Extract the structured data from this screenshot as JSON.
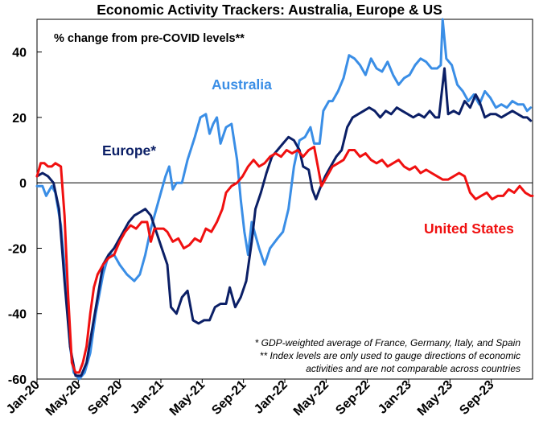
{
  "chart_data": {
    "type": "line",
    "title": "Economic Activity Trackers: Australia, Europe & US",
    "subtitle": "% change from pre-COVID levels**",
    "xlabel": "",
    "ylabel": "",
    "ylim": [
      -60,
      50
    ],
    "yticks": [
      40,
      20,
      0,
      -20,
      -40,
      -60
    ],
    "x_tick_labels": [
      "Jan-20",
      "May-20",
      "Sep-20",
      "Jan-21",
      "May-21",
      "Sep-21",
      "Jan-22",
      "May-22",
      "Sep-22",
      "Jan-23",
      "May-23",
      "Sep-23"
    ],
    "notes": [
      "* GDP-weighted average of France, Germany, Italy, and Spain",
      "** Index levels are only used to gauge directions of economic",
      "activities and are not comparable across countries"
    ],
    "series": [
      {
        "name": "Australia",
        "label": "Australia",
        "color": "#3a8ee6",
        "points": [
          [
            0,
            -1
          ],
          [
            0.3,
            -1
          ],
          [
            0.5,
            -4
          ],
          [
            0.8,
            -1
          ],
          [
            1.0,
            -3
          ],
          [
            1.3,
            -13
          ],
          [
            1.6,
            -32
          ],
          [
            1.8,
            -50
          ],
          [
            2.0,
            -58
          ],
          [
            2.3,
            -60
          ],
          [
            2.6,
            -58
          ],
          [
            2.9,
            -52
          ],
          [
            3.2,
            -40
          ],
          [
            3.6,
            -28
          ],
          [
            3.9,
            -22
          ],
          [
            4.2,
            -22
          ],
          [
            4.5,
            -25
          ],
          [
            4.9,
            -28
          ],
          [
            5.3,
            -30
          ],
          [
            5.6,
            -28
          ],
          [
            5.9,
            -22
          ],
          [
            6.2,
            -14
          ],
          [
            6.5,
            -8
          ],
          [
            6.8,
            -2
          ],
          [
            7.0,
            2
          ],
          [
            7.2,
            5
          ],
          [
            7.4,
            -2
          ],
          [
            7.6,
            0
          ],
          [
            7.9,
            0
          ],
          [
            8.2,
            7
          ],
          [
            8.6,
            14
          ],
          [
            8.9,
            20
          ],
          [
            9.2,
            21
          ],
          [
            9.4,
            15
          ],
          [
            9.6,
            18
          ],
          [
            9.8,
            20
          ],
          [
            10.0,
            12
          ],
          [
            10.3,
            17
          ],
          [
            10.6,
            18
          ],
          [
            10.9,
            7
          ],
          [
            11.1,
            -5
          ],
          [
            11.3,
            -15
          ],
          [
            11.5,
            -22
          ],
          [
            11.7,
            -12
          ],
          [
            11.9,
            -16
          ],
          [
            12.1,
            -20
          ],
          [
            12.4,
            -25
          ],
          [
            12.7,
            -20
          ],
          [
            13.1,
            -17
          ],
          [
            13.4,
            -15
          ],
          [
            13.7,
            -8
          ],
          [
            14.0,
            5
          ],
          [
            14.3,
            13
          ],
          [
            14.6,
            14
          ],
          [
            14.9,
            17
          ],
          [
            15.1,
            12
          ],
          [
            15.4,
            12
          ],
          [
            15.6,
            22
          ],
          [
            15.9,
            25
          ],
          [
            16.1,
            25
          ],
          [
            16.4,
            28
          ],
          [
            16.7,
            32
          ],
          [
            17.0,
            39
          ],
          [
            17.3,
            38
          ],
          [
            17.6,
            36
          ],
          [
            17.9,
            33
          ],
          [
            18.2,
            38
          ],
          [
            18.5,
            35
          ],
          [
            18.8,
            34
          ],
          [
            19.1,
            37
          ],
          [
            19.4,
            33
          ],
          [
            19.7,
            30
          ],
          [
            20.0,
            32
          ],
          [
            20.3,
            33
          ],
          [
            20.6,
            36
          ],
          [
            20.9,
            38
          ],
          [
            21.2,
            37
          ],
          [
            21.5,
            35
          ],
          [
            21.8,
            35
          ],
          [
            22.0,
            36
          ],
          [
            22.1,
            50
          ],
          [
            22.3,
            38
          ],
          [
            22.6,
            36
          ],
          [
            22.9,
            30
          ],
          [
            23.2,
            28
          ],
          [
            23.5,
            25
          ],
          [
            23.8,
            27
          ],
          [
            24.1,
            24
          ],
          [
            24.4,
            28
          ],
          [
            24.7,
            26
          ],
          [
            25.0,
            23
          ],
          [
            25.3,
            24
          ],
          [
            25.6,
            23
          ],
          [
            25.9,
            25
          ],
          [
            26.2,
            24
          ],
          [
            26.5,
            24
          ],
          [
            26.7,
            22
          ],
          [
            26.9,
            23
          ]
        ]
      },
      {
        "name": "Europe",
        "label": "Europe*",
        "color": "#0b1f66",
        "points": [
          [
            0,
            2
          ],
          [
            0.3,
            3
          ],
          [
            0.6,
            2
          ],
          [
            0.9,
            0
          ],
          [
            1.2,
            -8
          ],
          [
            1.5,
            -30
          ],
          [
            1.8,
            -50
          ],
          [
            2.1,
            -59
          ],
          [
            2.4,
            -59
          ],
          [
            2.7,
            -55
          ],
          [
            3.0,
            -45
          ],
          [
            3.3,
            -35
          ],
          [
            3.6,
            -25
          ],
          [
            3.9,
            -22
          ],
          [
            4.2,
            -20
          ],
          [
            4.6,
            -16
          ],
          [
            5.0,
            -12
          ],
          [
            5.3,
            -10
          ],
          [
            5.6,
            -9
          ],
          [
            5.9,
            -8
          ],
          [
            6.2,
            -10
          ],
          [
            6.5,
            -15
          ],
          [
            6.8,
            -20
          ],
          [
            7.1,
            -25
          ],
          [
            7.3,
            -38
          ],
          [
            7.6,
            -40
          ],
          [
            7.9,
            -35
          ],
          [
            8.2,
            -33
          ],
          [
            8.5,
            -42
          ],
          [
            8.8,
            -43
          ],
          [
            9.1,
            -42
          ],
          [
            9.4,
            -42
          ],
          [
            9.7,
            -38
          ],
          [
            10.0,
            -37
          ],
          [
            10.3,
            -37
          ],
          [
            10.5,
            -32
          ],
          [
            10.8,
            -38
          ],
          [
            11.1,
            -35
          ],
          [
            11.4,
            -30
          ],
          [
            11.7,
            -18
          ],
          [
            11.9,
            -8
          ],
          [
            12.2,
            -3
          ],
          [
            12.5,
            3
          ],
          [
            12.8,
            8
          ],
          [
            13.1,
            10
          ],
          [
            13.4,
            12
          ],
          [
            13.7,
            14
          ],
          [
            14.0,
            13
          ],
          [
            14.3,
            10
          ],
          [
            14.5,
            5
          ],
          [
            14.8,
            4
          ],
          [
            15.0,
            -2
          ],
          [
            15.2,
            -5
          ],
          [
            15.4,
            -2
          ],
          [
            15.7,
            2
          ],
          [
            16.0,
            5
          ],
          [
            16.3,
            8
          ],
          [
            16.6,
            10
          ],
          [
            16.9,
            17
          ],
          [
            17.2,
            20
          ],
          [
            17.5,
            21
          ],
          [
            17.8,
            22
          ],
          [
            18.1,
            23
          ],
          [
            18.4,
            22
          ],
          [
            18.7,
            20
          ],
          [
            19.0,
            22
          ],
          [
            19.3,
            21
          ],
          [
            19.6,
            23
          ],
          [
            19.9,
            22
          ],
          [
            20.2,
            21
          ],
          [
            20.5,
            20
          ],
          [
            20.8,
            21
          ],
          [
            21.1,
            20
          ],
          [
            21.4,
            22
          ],
          [
            21.7,
            20
          ],
          [
            21.9,
            20
          ],
          [
            22.0,
            25
          ],
          [
            22.2,
            35
          ],
          [
            22.4,
            21
          ],
          [
            22.7,
            22
          ],
          [
            23.0,
            21
          ],
          [
            23.3,
            25
          ],
          [
            23.6,
            23
          ],
          [
            23.9,
            27
          ],
          [
            24.1,
            25
          ],
          [
            24.4,
            20
          ],
          [
            24.7,
            21
          ],
          [
            25.0,
            21
          ],
          [
            25.3,
            20
          ],
          [
            25.6,
            21
          ],
          [
            25.9,
            22
          ],
          [
            26.2,
            21
          ],
          [
            26.5,
            20
          ],
          [
            26.7,
            20
          ],
          [
            26.9,
            19
          ]
        ]
      },
      {
        "name": "United States",
        "label": "United States",
        "color": "#f01010",
        "points": [
          [
            0,
            2
          ],
          [
            0.2,
            6
          ],
          [
            0.4,
            6
          ],
          [
            0.6,
            5
          ],
          [
            0.8,
            5
          ],
          [
            1.0,
            6
          ],
          [
            1.3,
            5
          ],
          [
            1.5,
            -10
          ],
          [
            1.7,
            -35
          ],
          [
            1.9,
            -55
          ],
          [
            2.1,
            -58
          ],
          [
            2.3,
            -58
          ],
          [
            2.5,
            -55
          ],
          [
            2.7,
            -50
          ],
          [
            2.9,
            -40
          ],
          [
            3.1,
            -32
          ],
          [
            3.3,
            -28
          ],
          [
            3.6,
            -25
          ],
          [
            3.9,
            -23
          ],
          [
            4.2,
            -22
          ],
          [
            4.5,
            -18
          ],
          [
            4.8,
            -15
          ],
          [
            5.1,
            -13
          ],
          [
            5.4,
            -14
          ],
          [
            5.7,
            -12
          ],
          [
            6.0,
            -12
          ],
          [
            6.2,
            -18
          ],
          [
            6.4,
            -14
          ],
          [
            6.6,
            -14
          ],
          [
            6.9,
            -14
          ],
          [
            7.1,
            -15
          ],
          [
            7.4,
            -18
          ],
          [
            7.7,
            -17
          ],
          [
            8.0,
            -20
          ],
          [
            8.3,
            -19
          ],
          [
            8.6,
            -17
          ],
          [
            8.9,
            -18
          ],
          [
            9.2,
            -14
          ],
          [
            9.5,
            -15
          ],
          [
            9.8,
            -12
          ],
          [
            10.1,
            -8
          ],
          [
            10.3,
            -3
          ],
          [
            10.6,
            -1
          ],
          [
            10.9,
            0
          ],
          [
            11.2,
            2
          ],
          [
            11.5,
            5
          ],
          [
            11.8,
            7
          ],
          [
            12.1,
            5
          ],
          [
            12.4,
            6
          ],
          [
            12.7,
            8
          ],
          [
            13.0,
            9
          ],
          [
            13.3,
            8
          ],
          [
            13.6,
            10
          ],
          [
            13.9,
            9
          ],
          [
            14.2,
            10
          ],
          [
            14.5,
            8
          ],
          [
            14.8,
            10
          ],
          [
            15.1,
            11
          ],
          [
            15.3,
            5
          ],
          [
            15.5,
            -1
          ],
          [
            15.8,
            2
          ],
          [
            16.1,
            5
          ],
          [
            16.4,
            6
          ],
          [
            16.7,
            7
          ],
          [
            17.0,
            10
          ],
          [
            17.3,
            10
          ],
          [
            17.6,
            8
          ],
          [
            17.9,
            9
          ],
          [
            18.2,
            7
          ],
          [
            18.5,
            6
          ],
          [
            18.8,
            7
          ],
          [
            19.1,
            5
          ],
          [
            19.4,
            6
          ],
          [
            19.7,
            7
          ],
          [
            20.0,
            5
          ],
          [
            20.3,
            4
          ],
          [
            20.6,
            5
          ],
          [
            20.9,
            3
          ],
          [
            21.2,
            4
          ],
          [
            21.5,
            3
          ],
          [
            21.8,
            2
          ],
          [
            22.1,
            1
          ],
          [
            22.4,
            1
          ],
          [
            22.7,
            2
          ],
          [
            23.0,
            3
          ],
          [
            23.3,
            2
          ],
          [
            23.6,
            -3
          ],
          [
            23.9,
            -5
          ],
          [
            24.2,
            -4
          ],
          [
            24.5,
            -3
          ],
          [
            24.8,
            -5
          ],
          [
            25.1,
            -4
          ],
          [
            25.4,
            -4
          ],
          [
            25.7,
            -2
          ],
          [
            26.0,
            -3
          ],
          [
            26.3,
            -1
          ],
          [
            26.6,
            -3
          ],
          [
            26.9,
            -4
          ],
          [
            27.0,
            -4
          ]
        ]
      }
    ]
  }
}
